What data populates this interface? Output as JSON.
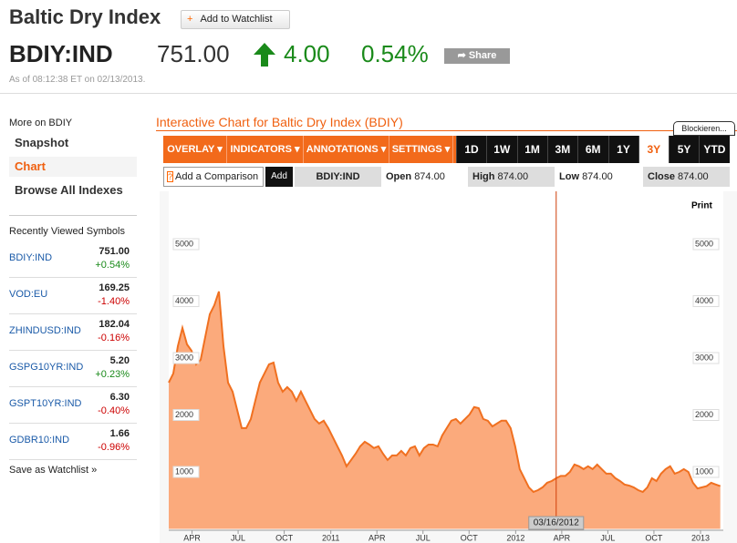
{
  "header": {
    "title": "Baltic Dry Index",
    "watchlist_button": "Add to Watchlist",
    "symbol": "BDIY:IND",
    "price": "751.00",
    "change": "4.00",
    "change_pct": "0.54%",
    "share": "Share",
    "timestamp": "As of 08:12:38 ET on 02/13/2013."
  },
  "sidebar": {
    "heading": "More on BDIY",
    "links": [
      "Snapshot",
      "Chart",
      "Browse All Indexes"
    ],
    "active_link": 1,
    "recent_heading": "Recently Viewed Symbols",
    "recent": [
      {
        "symbol": "BDIY:IND",
        "price": "751.00",
        "change": "+0.54%"
      },
      {
        "symbol": "VOD:EU",
        "price": "169.25",
        "change": "-1.40%"
      },
      {
        "symbol": "ZHINDUSD:IND",
        "price": "182.04",
        "change": "-0.16%"
      },
      {
        "symbol": "GSPG10YR:IND",
        "price": "5.20",
        "change": "+0.23%"
      },
      {
        "symbol": "GSPT10YR:IND",
        "price": "6.30",
        "change": "-0.40%"
      },
      {
        "symbol": "GDBR10:IND",
        "price": "1.66",
        "change": "-0.96%"
      }
    ],
    "save": "Save as Watchlist"
  },
  "panel": {
    "title": "Interactive Chart for Baltic Dry Index (BDIY)",
    "menus": [
      "OVERLAY",
      "INDICATORS",
      "ANNOTATIONS",
      "SETTINGS"
    ],
    "ranges": [
      "1D",
      "1W",
      "1M",
      "3M",
      "6M",
      "1Y",
      "3Y",
      "5Y",
      "YTD"
    ],
    "active_range": 6,
    "blocker": "Blockieren...",
    "compare": "Add a Comparison",
    "add": "Add",
    "symbol": "BDIY:IND",
    "quotes": [
      {
        "label": "Open",
        "value": "874.00"
      },
      {
        "label": "High",
        "value": "874.00"
      },
      {
        "label": "Low",
        "value": "874.00"
      },
      {
        "label": "Close",
        "value": "874.00"
      }
    ],
    "print": "Print"
  },
  "chart_data": {
    "type": "area",
    "color": "#f07020",
    "fill": "#fbaa7c",
    "x": [
      0,
      9,
      18,
      27,
      36,
      45,
      54,
      63,
      72,
      81,
      90,
      99,
      108,
      117,
      126,
      135,
      144,
      153,
      162,
      171,
      180,
      189,
      198,
      207,
      216,
      225,
      234,
      243,
      252,
      261,
      270,
      279,
      288,
      297,
      306,
      315,
      324,
      333,
      342,
      351,
      360,
      369,
      378,
      387,
      396,
      405,
      414,
      423,
      432,
      441,
      450,
      459,
      468,
      477,
      486,
      495,
      504,
      513,
      522,
      531,
      540,
      549,
      558,
      567,
      576,
      585,
      594,
      603,
      612,
      621,
      630,
      639,
      648,
      657,
      666,
      675,
      684,
      693,
      702,
      711,
      720,
      729,
      738,
      747,
      756,
      765,
      774,
      783,
      792,
      801,
      810,
      819,
      828,
      837,
      846,
      855,
      864,
      873,
      882,
      891,
      900,
      909,
      918,
      927,
      936,
      945,
      954,
      963,
      972,
      981,
      990,
      999,
      1008,
      1017,
      1026,
      1035,
      1044,
      1053,
      1062,
      1071,
      1080,
      1089
    ],
    "values": [
      2570,
      2730,
      3210,
      3530,
      3240,
      3130,
      2890,
      2970,
      3370,
      3770,
      3930,
      4170,
      3210,
      2570,
      2410,
      2090,
      1770,
      1770,
      1930,
      2250,
      2570,
      2730,
      2890,
      2920,
      2570,
      2410,
      2490,
      2410,
      2250,
      2410,
      2250,
      2090,
      1930,
      1850,
      1900,
      1770,
      1610,
      1450,
      1290,
      1100,
      1210,
      1320,
      1450,
      1530,
      1480,
      1420,
      1450,
      1320,
      1210,
      1290,
      1290,
      1370,
      1290,
      1420,
      1450,
      1290,
      1420,
      1480,
      1480,
      1450,
      1640,
      1770,
      1900,
      1930,
      1850,
      1930,
      2010,
      2140,
      2120,
      1930,
      1900,
      1800,
      1850,
      1900,
      1900,
      1770,
      1450,
      1050,
      890,
      730,
      650,
      680,
      730,
      810,
      840,
      890,
      930,
      930,
      1000,
      1130,
      1100,
      1050,
      1100,
      1050,
      1130,
      1050,
      970,
      970,
      890,
      840,
      780,
      760,
      730,
      680,
      650,
      730,
      890,
      840,
      970,
      1050,
      1100,
      970,
      1000,
      1050,
      1000,
      810,
      710,
      730,
      750,
      810,
      780,
      750
    ],
    "xlim": [
      0,
      1095
    ],
    "ylim": [
      0,
      5800
    ],
    "xticks": [
      {
        "value": 46,
        "label": "APR"
      },
      {
        "value": 137,
        "label": "JUL"
      },
      {
        "value": 228,
        "label": "OCT"
      },
      {
        "value": 320,
        "label": "2011"
      },
      {
        "value": 411,
        "label": "APR"
      },
      {
        "value": 502,
        "label": "JUL"
      },
      {
        "value": 593,
        "label": "OCT"
      },
      {
        "value": 685,
        "label": "2012"
      },
      {
        "value": 776,
        "label": "APR"
      },
      {
        "value": 867,
        "label": "JUL"
      },
      {
        "value": 958,
        "label": "OCT"
      },
      {
        "value": 1050,
        "label": "2013"
      }
    ],
    "yticks": [
      1000,
      2000,
      3000,
      4000,
      5000
    ],
    "crosshair": {
      "x": 765,
      "label": "03/16/2012"
    }
  }
}
